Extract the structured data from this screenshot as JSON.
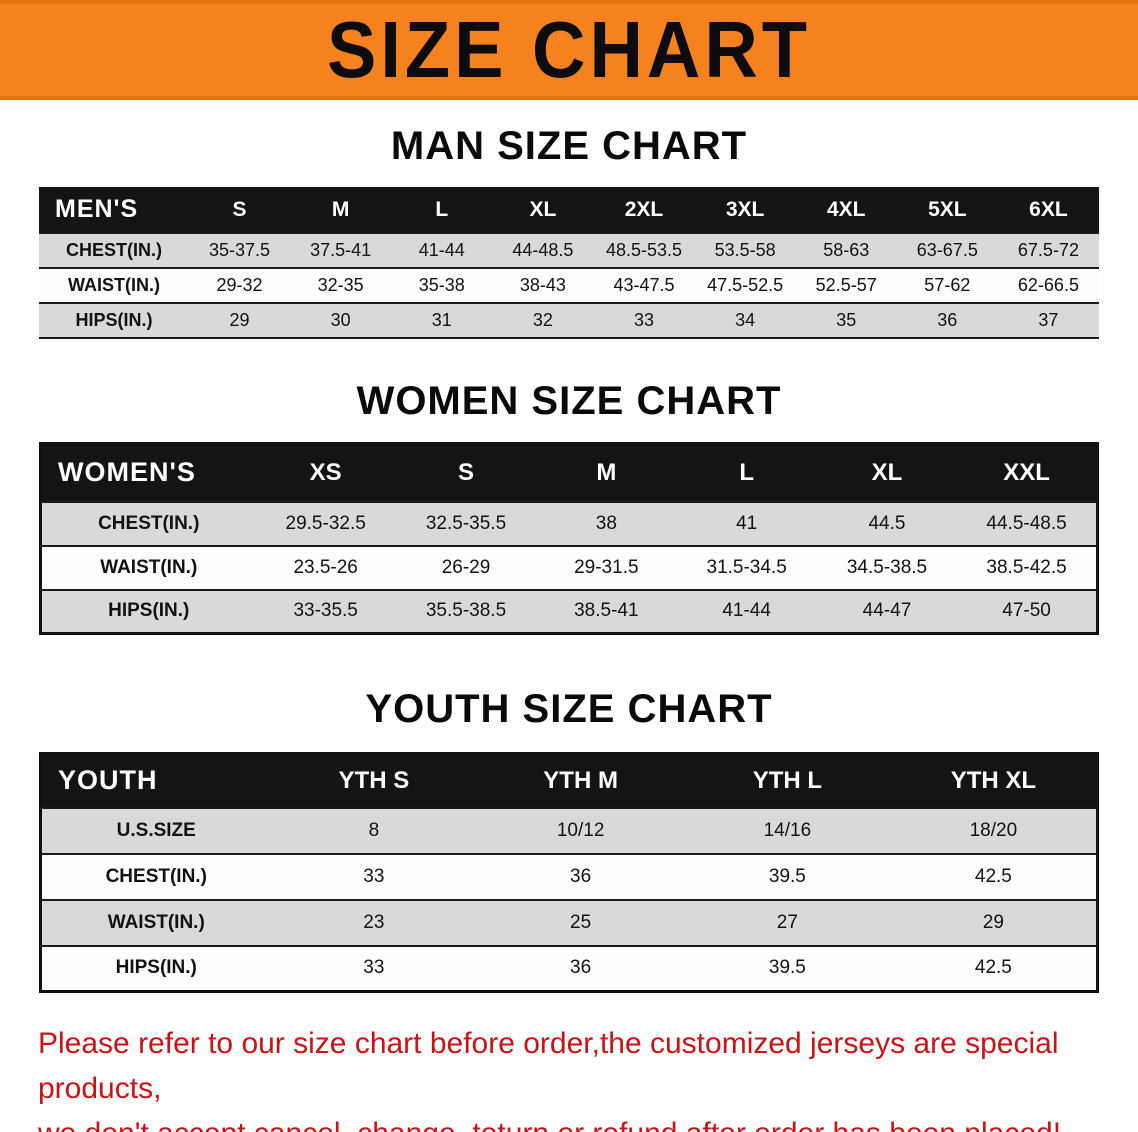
{
  "banner": {
    "title": "SIZE CHART"
  },
  "colors": {
    "banner_orange": "#f5821f",
    "header_black": "#141414",
    "row_shaded": "#d9d9d9",
    "disclaimer_red": "#cc1212"
  },
  "chart_data": [
    {
      "type": "table",
      "title": "MAN SIZE CHART",
      "corner_label": "MEN'S",
      "columns": [
        "S",
        "M",
        "L",
        "XL",
        "2XL",
        "3XL",
        "4XL",
        "5XL",
        "6XL"
      ],
      "rows": [
        {
          "label": "CHEST(IN.)",
          "values": [
            "35-37.5",
            "37.5-41",
            "41-44",
            "44-48.5",
            "48.5-53.5",
            "53.5-58",
            "58-63",
            "63-67.5",
            "67.5-72"
          ]
        },
        {
          "label": "WAIST(IN.)",
          "values": [
            "29-32",
            "32-35",
            "35-38",
            "38-43",
            "43-47.5",
            "47.5-52.5",
            "52.5-57",
            "57-62",
            "62-66.5"
          ]
        },
        {
          "label": "HIPS(IN.)",
          "values": [
            "29",
            "30",
            "31",
            "32",
            "33",
            "34",
            "35",
            "36",
            "37"
          ]
        }
      ]
    },
    {
      "type": "table",
      "title": "WOMEN SIZE CHART",
      "corner_label": "WOMEN'S",
      "columns": [
        "XS",
        "S",
        "M",
        "L",
        "XL",
        "XXL"
      ],
      "rows": [
        {
          "label": "CHEST(IN.)",
          "values": [
            "29.5-32.5",
            "32.5-35.5",
            "38",
            "41",
            "44.5",
            "44.5-48.5"
          ]
        },
        {
          "label": "WAIST(IN.)",
          "values": [
            "23.5-26",
            "26-29",
            "29-31.5",
            "31.5-34.5",
            "34.5-38.5",
            "38.5-42.5"
          ]
        },
        {
          "label": "HIPS(IN.)",
          "values": [
            "33-35.5",
            "35.5-38.5",
            "38.5-41",
            "41-44",
            "44-47",
            "47-50"
          ]
        }
      ]
    },
    {
      "type": "table",
      "title": "YOUTH SIZE CHART",
      "corner_label": "YOUTH",
      "columns": [
        "YTH S",
        "YTH M",
        "YTH L",
        "YTH XL"
      ],
      "rows": [
        {
          "label": "U.S.SIZE",
          "values": [
            "8",
            "10/12",
            "14/16",
            "18/20"
          ]
        },
        {
          "label": "CHEST(IN.)",
          "values": [
            "33",
            "36",
            "39.5",
            "42.5"
          ]
        },
        {
          "label": "WAIST(IN.)",
          "values": [
            "23",
            "25",
            "27",
            "29"
          ]
        },
        {
          "label": "HIPS(IN.)",
          "values": [
            "33",
            "36",
            "39.5",
            "42.5"
          ]
        }
      ]
    }
  ],
  "footer": {
    "line1": "Please refer to our size chart before order,the customized jerseys are special products,",
    "line2": "we don't accept cancel, change, teturn or refund after order has been placed!"
  }
}
